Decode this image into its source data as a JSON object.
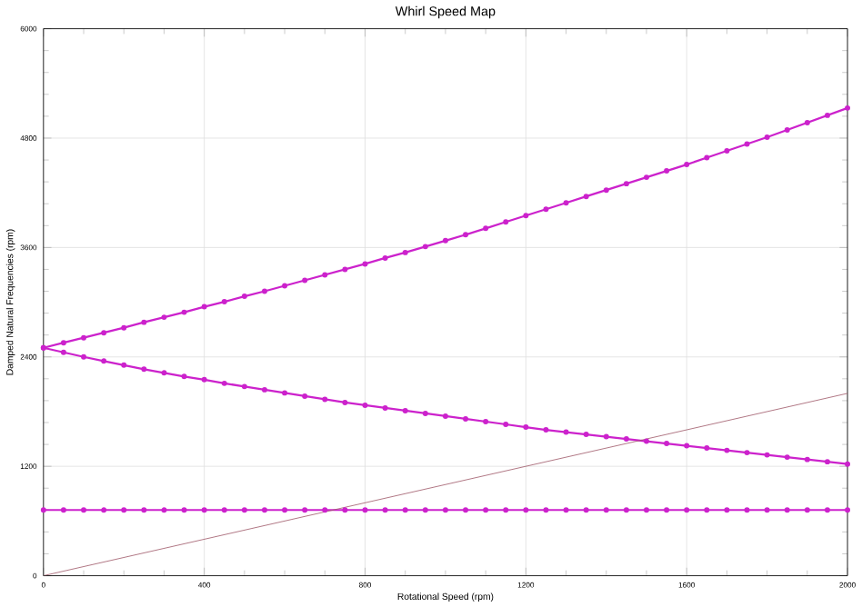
{
  "chart_data": {
    "type": "line",
    "title": "Whirl Speed Map",
    "xlabel": "Rotational Speed (rpm)",
    "ylabel": "Damped Natural Frequencies (rpm)",
    "x": [
      0,
      50,
      100,
      150,
      200,
      250,
      300,
      350,
      400,
      450,
      500,
      550,
      600,
      650,
      700,
      750,
      800,
      850,
      900,
      950,
      1000,
      1050,
      1100,
      1150,
      1200,
      1250,
      1300,
      1350,
      1400,
      1450,
      1500,
      1550,
      1600,
      1650,
      1700,
      1750,
      1800,
      1850,
      1900,
      1950,
      2000
    ],
    "series": [
      {
        "color": "#cc22cc",
        "marker": "circle",
        "values": [
          2500,
          2555,
          2610,
          2665,
          2720,
          2780,
          2835,
          2890,
          2950,
          3005,
          3065,
          3120,
          3180,
          3240,
          3300,
          3360,
          3420,
          3485,
          3545,
          3610,
          3675,
          3740,
          3810,
          3880,
          3950,
          4020,
          4090,
          4160,
          4230,
          4300,
          4370,
          4440,
          4510,
          4585,
          4660,
          4735,
          4810,
          4890,
          4970,
          5050,
          5130
        ]
      },
      {
        "color": "#cc22cc",
        "marker": "circle",
        "values": [
          2500,
          2450,
          2400,
          2355,
          2310,
          2265,
          2225,
          2185,
          2150,
          2110,
          2075,
          2040,
          2005,
          1970,
          1935,
          1900,
          1870,
          1840,
          1810,
          1780,
          1750,
          1720,
          1690,
          1660,
          1630,
          1600,
          1575,
          1550,
          1525,
          1500,
          1475,
          1450,
          1425,
          1400,
          1375,
          1350,
          1325,
          1300,
          1275,
          1250,
          1225
        ]
      },
      {
        "color": "#cc22cc",
        "marker": "circle",
        "values": [
          720,
          720,
          720,
          720,
          720,
          720,
          720,
          720,
          720,
          720,
          720,
          720,
          720,
          720,
          720,
          720,
          720,
          720,
          720,
          720,
          720,
          720,
          720,
          720,
          720,
          720,
          720,
          720,
          720,
          720,
          720,
          720,
          720,
          720,
          720,
          720,
          720,
          720,
          720,
          720,
          720
        ]
      },
      {
        "color": "#a05a6a",
        "marker": "none",
        "x": [
          0,
          2000
        ],
        "values": [
          0,
          2000
        ]
      }
    ],
    "xlim": [
      0,
      2000
    ],
    "xticks": [
      0,
      400,
      800,
      1200,
      1600,
      2000
    ],
    "ylim": [
      0,
      6000
    ],
    "yticks": [
      0,
      1200,
      2400,
      3600,
      4800,
      6000
    ],
    "grid": true
  }
}
